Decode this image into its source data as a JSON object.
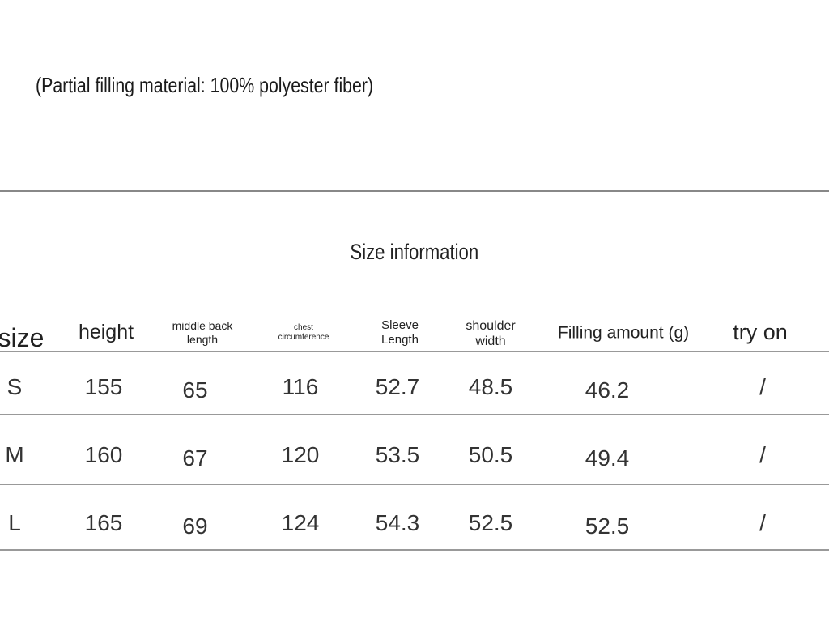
{
  "note": "(Partial filling material: 100% polyester fiber)",
  "table": {
    "title": "Size information",
    "headers": [
      "size",
      "height",
      "middle back length",
      "chest circumference",
      "Sleeve Length",
      "shoulder width",
      "Filling amount (g)",
      "try on"
    ],
    "rows": [
      [
        "S",
        "155",
        "65",
        "116",
        "52.7",
        "48.5",
        "46.2",
        "/"
      ],
      [
        "M",
        "160",
        "67",
        "120",
        "53.5",
        "50.5",
        "49.4",
        "/"
      ],
      [
        "L",
        "165",
        "69",
        "124",
        "54.3",
        "52.5",
        "52.5",
        "/"
      ]
    ]
  }
}
